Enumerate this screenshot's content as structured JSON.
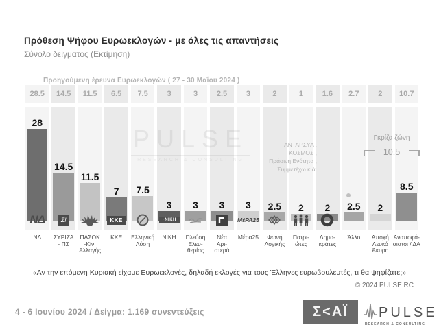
{
  "title": "Πρόθεση Ψήφου Ευρωεκλογών - με όλες τις απαντήσεις",
  "subtitle": "Σύνολο δείγματος   (Εκτίμηση)",
  "previous_survey": {
    "label": "Προηγούμενη έρευνα Ευρωεκλογών ( 27 - 30 Μαΐου 2024 )"
  },
  "chart_data": {
    "type": "bar",
    "title": "Πρόθεση Ψήφου Ευρωεκλογών - με όλες τις απαντήσεις",
    "subtitle": "Σύνολο δείγματος (Εκτίμηση)",
    "categories": [
      "ΝΔ",
      "ΣΥΡΙΖΑ\n- ΠΣ",
      "ΠΑΣΟΚ\n-Κίν.\nΑλλαγής",
      "ΚΚΕ",
      "Ελληνική\nΛύση",
      "ΝΙΚΗ",
      "Πλεύση\nΕλευ-\nθερίας",
      "Νέα\nΑρι-\nστερά",
      "Μέρα25",
      "Φωνή\nΛογικής",
      "Πατρι-\nώτες",
      "Δημο-\nκράτες",
      "Άλλο",
      "Αποχή\nΛευκό\nΆκυρο",
      "Αναποφά-\nσιστοι / ΔΑ"
    ],
    "series": [
      {
        "name": "Εκτίμηση 4 - 6 Ιουνίου 2024",
        "values": [
          28,
          14.5,
          11.5,
          7,
          7.5,
          3,
          3,
          3,
          3,
          2.5,
          2,
          2,
          2.5,
          2,
          8.5
        ]
      },
      {
        "name": "Προηγούμενη έρευνα Ευρωεκλογών ( 27 - 30 Μαΐου 2024 )",
        "values": [
          28.5,
          14.5,
          11.5,
          6.5,
          7.5,
          3,
          3,
          2.5,
          3,
          2,
          1,
          1.6,
          2.7,
          2,
          10.7
        ]
      }
    ],
    "bar_colors": [
      "#6e6e6e",
      "#9a9a9a",
      "#c3c3c3",
      "#7a7a7a",
      "#c7c7c7",
      "#5f5f5f",
      "#9f9f9f",
      "#8e8e8e",
      "#cfcfcf",
      "#a8a8a8",
      "#bdbdbd",
      "#8a8a8a",
      "#a5a5a5",
      "#d5d5d5",
      "#8f8f8f"
    ],
    "logos": [
      "nd-logo",
      "syriza-logo",
      "pasok-logo",
      "kke-logo",
      "elliniki-lysi-logo",
      "niki-logo",
      "plefsi-eleftherias-logo",
      "nea-aristera-logo",
      "mera25-logo",
      "foni-logikis-logo",
      "patriotes-logo",
      "dimokrates-logo",
      null,
      null,
      null
    ],
    "stripe_colors": [
      "#f4f4f4",
      "#eaeaea"
    ],
    "ylim": [
      0,
      30
    ],
    "grid": false,
    "legend_position": "none"
  },
  "annotations": {
    "other_parties": "ΑΝΤΑΡΣΥΑ ,\nΚΟΣΜΟΣ ,\nΠράσινη Ενότητα ,\nΣυμμετέχω  κ.ά.",
    "grey_zone_label": "Γκρίζα ζώνη",
    "grey_zone_value": "10.5"
  },
  "question": "«Αν την επόμενη Κυριακή είχαμε Ευρωεκλογές, δηλαδή εκλογές για τους Έλληνες ευρωβουλευτές, τι θα ψηφίζατε;»",
  "copyright": "© 2024 PULSE RC",
  "watermark": {
    "word": "PULSE",
    "sub": "RESEARCH & CONSULTING"
  },
  "footer": {
    "fieldwork": "4 - 6  Ιουνίου 2024  /  Δείγμα:  1.169 συνεντεύξεις",
    "skai_logo_text": "Σ<ΑΪ",
    "pulse_logo_word": "PULSE",
    "pulse_logo_sub": "RESEARCH & CONSULTING"
  }
}
